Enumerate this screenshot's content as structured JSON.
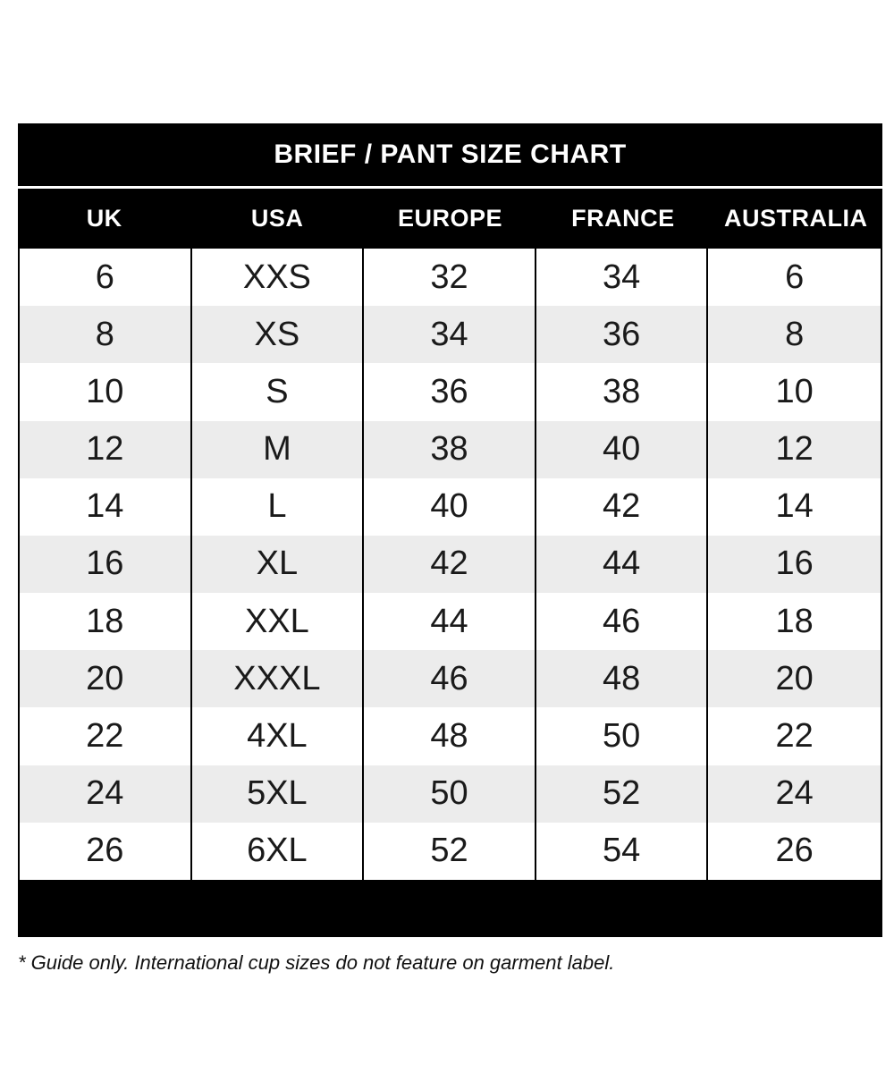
{
  "chart": {
    "title": "BRIEF / PANT SIZE CHART",
    "columns": [
      "UK",
      "USA",
      "EUROPE",
      "FRANCE",
      "AUSTRALIA"
    ],
    "rows": [
      [
        "6",
        "XXS",
        "32",
        "34",
        "6"
      ],
      [
        "8",
        "XS",
        "34",
        "36",
        "8"
      ],
      [
        "10",
        "S",
        "36",
        "38",
        "10"
      ],
      [
        "12",
        "M",
        "38",
        "40",
        "12"
      ],
      [
        "14",
        "L",
        "40",
        "42",
        "14"
      ],
      [
        "16",
        "XL",
        "42",
        "44",
        "16"
      ],
      [
        "18",
        "XXL",
        "44",
        "46",
        "18"
      ],
      [
        "20",
        "XXXL",
        "46",
        "48",
        "20"
      ],
      [
        "22",
        "4XL",
        "48",
        "50",
        "22"
      ],
      [
        "24",
        "5XL",
        "50",
        "52",
        "24"
      ],
      [
        "26",
        "6XL",
        "52",
        "54",
        "26"
      ]
    ],
    "footnote": "* Guide only. International cup sizes do not feature on garment label.",
    "colors": {
      "bar": "#000000",
      "header_text": "#ffffff",
      "alt_row": "#ececec",
      "body_text": "#1a1a1a"
    }
  }
}
